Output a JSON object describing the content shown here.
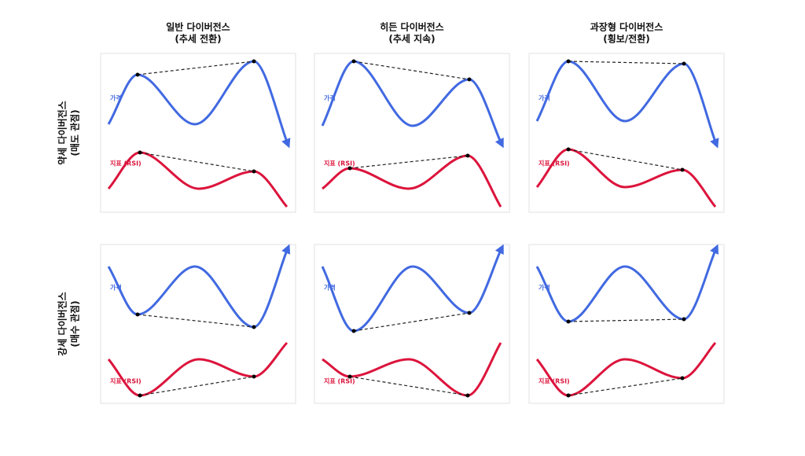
{
  "columns": [
    {
      "title": "일반 다이버전스",
      "subtitle": "(추세 전환)"
    },
    {
      "title": "히든 다이버전스",
      "subtitle": "(추세 지속)"
    },
    {
      "title": "과장형 다이버전스",
      "subtitle": "(횡보/전환)"
    }
  ],
  "rows": [
    {
      "title": "약세 다이버전스",
      "subtitle": "(매도 관점)"
    },
    {
      "title": "강세 다이버전스",
      "subtitle": "(매수 관점)"
    }
  ],
  "labels": {
    "price": "가격",
    "indicator": "지표 (RSI)"
  }
}
